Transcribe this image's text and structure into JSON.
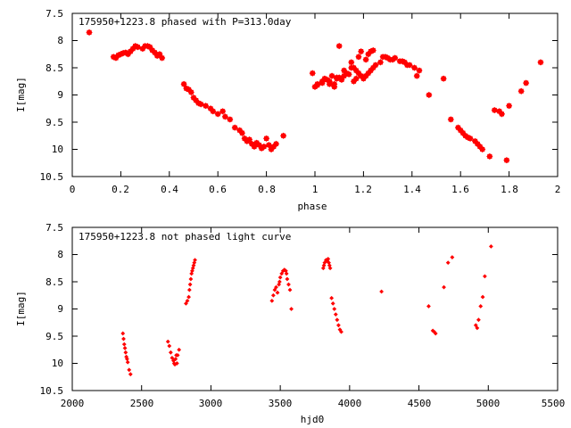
{
  "chart_data": [
    {
      "type": "scatter",
      "title": "175950+1223.8 phased with P=313.0day",
      "xlabel": "phase",
      "ylabel": "I[mag]",
      "xlim": [
        0,
        2
      ],
      "ylim": [
        7.5,
        10.5
      ],
      "y_inverted": true,
      "x_ticks": [
        "0",
        "0.2",
        "0.4",
        "0.6",
        "0.8",
        "1",
        "1.2",
        "1.4",
        "1.6",
        "1.8",
        "2"
      ],
      "y_ticks": [
        "7.5",
        "8",
        "8.5",
        "9",
        "9.5",
        "10",
        "10.5"
      ],
      "grid": false,
      "marker_color": "#ff0000",
      "marker": "filled-star",
      "series": [
        {
          "x": [
            0.07,
            0.17,
            0.18,
            0.19,
            0.2,
            0.21,
            0.22,
            0.23,
            0.24,
            0.25,
            0.26,
            0.27,
            0.29,
            0.3,
            0.31,
            0.32,
            0.33,
            0.34,
            0.35,
            0.36,
            0.37,
            0.46,
            0.47,
            0.48,
            0.49,
            0.5,
            0.51,
            0.52,
            0.53,
            0.55,
            0.57,
            0.58,
            0.6,
            0.62,
            0.63,
            0.65,
            0.67,
            0.69,
            0.7,
            0.71,
            0.72,
            0.73,
            0.74,
            0.75,
            0.76,
            0.77,
            0.78,
            0.79,
            0.8,
            0.81,
            0.82,
            0.83,
            0.84,
            0.87,
            0.99,
            1.01,
            1.03,
            1.04,
            1.05,
            1.06,
            1.07,
            1.08,
            1.09,
            1.1,
            1.11,
            1.12,
            1.13,
            1.14,
            1.15,
            1.16,
            1.17,
            1.18,
            1.19,
            1.2,
            1.21,
            1.22,
            1.23,
            1.24,
            1.25,
            1.27,
            1.29,
            1.31,
            1.33,
            1.35,
            1.37,
            1.39,
            1.41,
            1.43,
            1.47,
            1.53,
            1.56,
            1.59,
            1.6,
            1.61,
            1.62,
            1.63,
            1.64,
            1.66,
            1.67,
            1.68,
            1.69,
            1.72,
            1.74,
            1.76,
            1.77,
            1.79,
            1.8,
            1.85,
            1.87,
            1.93
          ],
          "y": [
            7.85,
            8.3,
            8.32,
            8.27,
            8.25,
            8.23,
            8.22,
            8.25,
            8.2,
            8.15,
            8.1,
            8.12,
            8.15,
            8.1,
            8.1,
            8.12,
            8.18,
            8.22,
            8.28,
            8.25,
            8.32,
            8.8,
            8.88,
            8.9,
            8.95,
            9.05,
            9.1,
            9.15,
            9.17,
            9.2,
            9.25,
            9.3,
            9.35,
            9.3,
            9.4,
            9.45,
            9.6,
            9.65,
            9.7,
            9.8,
            9.85,
            9.82,
            9.9,
            9.95,
            9.88,
            9.92,
            9.98,
            9.95,
            9.8,
            9.92,
            10.0,
            9.95,
            9.9,
            9.75,
            8.6,
            8.82,
            8.78,
            8.7,
            8.72,
            8.75,
            8.65,
            8.8,
            8.7,
            8.68,
            8.72,
            8.65,
            8.6,
            8.62,
            8.4,
            8.5,
            8.55,
            8.6,
            8.65,
            8.7,
            8.65,
            8.6,
            8.55,
            8.5,
            8.45,
            8.4,
            8.3,
            8.35,
            8.32,
            8.38,
            8.4,
            8.45,
            8.5,
            8.55,
            9.0,
            8.7,
            9.45,
            9.6,
            9.65,
            9.7,
            9.75,
            9.78,
            9.8,
            9.85,
            9.9,
            9.95,
            10.0,
            10.13,
            9.28,
            9.3,
            9.35,
            10.2,
            9.2,
            8.93,
            8.78,
            8.4
          ]
        },
        {
          "x": [
            1.0,
            1.01,
            1.03,
            1.06,
            1.08,
            1.09,
            1.1,
            1.12,
            1.15,
            1.16,
            1.17,
            1.18,
            1.19,
            1.21,
            1.22,
            1.23,
            1.24,
            1.28,
            1.3,
            1.32,
            1.36,
            1.38,
            1.42
          ],
          "y": [
            8.85,
            8.8,
            8.75,
            8.8,
            8.85,
            8.68,
            8.1,
            8.55,
            8.5,
            8.75,
            8.7,
            8.3,
            8.2,
            8.35,
            8.25,
            8.2,
            8.18,
            8.3,
            8.32,
            8.35,
            8.38,
            8.45,
            8.65
          ]
        }
      ]
    },
    {
      "type": "scatter",
      "title": "175950+1223.8 not phased light curve",
      "xlabel": "hjd0",
      "ylabel": "I[mag]",
      "xlim": [
        2000,
        5500
      ],
      "ylim": [
        7.5,
        10.5
      ],
      "y_inverted": true,
      "x_ticks": [
        "2000",
        "2500",
        "3000",
        "3500",
        "4000",
        "4500",
        "5000",
        "5500"
      ],
      "y_ticks": [
        "7.5",
        "8",
        "8.5",
        "9",
        "9.5",
        "10",
        "10.5"
      ],
      "grid": false,
      "marker_color": "#ff0000",
      "marker": "filled-diamond",
      "series": [
        {
          "x": [
            2365,
            2370,
            2375,
            2380,
            2385,
            2390,
            2395,
            2400,
            2410,
            2420,
            2690,
            2700,
            2710,
            2720,
            2730,
            2735,
            2740,
            2745,
            2750,
            2755,
            2760,
            2770,
            2820,
            2830,
            2840,
            2845,
            2850,
            2855,
            2860,
            2865,
            2870,
            2875,
            2880,
            2885,
            3440,
            3450,
            3460,
            3470,
            3480,
            3490,
            3495,
            3500,
            3510,
            3520,
            3530,
            3540,
            3545,
            3550,
            3560,
            3570,
            3580,
            3810,
            3815,
            3820,
            3830,
            3840,
            3845,
            3850,
            3855,
            3860,
            3870,
            3880,
            3890,
            3900,
            3910,
            3920,
            3930,
            3940,
            4230,
            4570,
            4600,
            4610,
            4620,
            4680,
            4710,
            4740,
            4910,
            4920,
            4930,
            4945,
            4960,
            4975,
            5020
          ],
          "y": [
            9.45,
            9.55,
            9.65,
            9.72,
            9.8,
            9.88,
            9.92,
            9.98,
            10.12,
            10.2,
            9.6,
            9.68,
            9.8,
            9.9,
            9.95,
            10.0,
            10.02,
            9.92,
            9.85,
            10.0,
            9.85,
            9.75,
            8.9,
            8.85,
            8.78,
            8.65,
            8.55,
            8.45,
            8.35,
            8.3,
            8.25,
            8.2,
            8.15,
            8.1,
            8.85,
            8.75,
            8.65,
            8.6,
            8.7,
            8.55,
            8.5,
            8.42,
            8.35,
            8.3,
            8.28,
            8.3,
            8.35,
            8.45,
            8.55,
            8.65,
            9.0,
            8.25,
            8.2,
            8.15,
            8.1,
            8.12,
            8.08,
            8.15,
            8.2,
            8.25,
            8.8,
            8.9,
            9.0,
            9.1,
            9.2,
            9.3,
            9.38,
            9.42,
            8.68,
            8.95,
            9.4,
            9.42,
            9.45,
            8.6,
            8.15,
            8.05,
            9.3,
            9.35,
            9.2,
            8.95,
            8.78,
            8.4,
            7.85
          ]
        }
      ]
    }
  ]
}
